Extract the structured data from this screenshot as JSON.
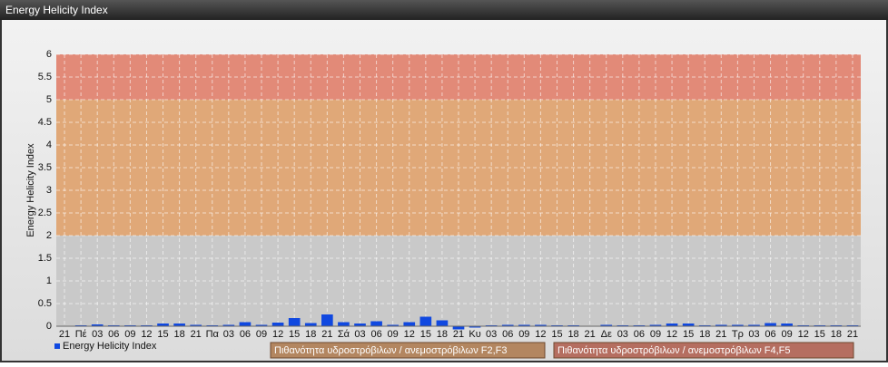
{
  "chart_data": {
    "type": "bar",
    "title": "Energy Helicity Index",
    "ylabel": "Energy Helicity Index",
    "categories": [
      "21",
      "Πέ",
      "03",
      "06",
      "09",
      "12",
      "15",
      "18",
      "21",
      "Πα",
      "03",
      "06",
      "09",
      "12",
      "15",
      "18",
      "21",
      "Σά",
      "03",
      "06",
      "09",
      "12",
      "15",
      "18",
      "21",
      "Κυ",
      "03",
      "06",
      "09",
      "12",
      "15",
      "18",
      "21",
      "Δε",
      "03",
      "06",
      "09",
      "12",
      "15",
      "18",
      "21",
      "Τρ",
      "03",
      "06",
      "09",
      "12",
      "15",
      "18",
      "21"
    ],
    "series": [
      {
        "name": "Energy Helicity Index",
        "color": "#1048e0",
        "values": [
          0.01,
          0.02,
          0.04,
          0.02,
          0.02,
          0.02,
          0.06,
          0.06,
          0.03,
          0.02,
          0.03,
          0.09,
          0.03,
          0.08,
          0.18,
          0.07,
          0.26,
          0.09,
          0.06,
          0.11,
          0.03,
          0.09,
          0.21,
          0.13,
          -0.07,
          -0.03,
          0.02,
          0.03,
          0.03,
          0.03,
          0.02,
          0.02,
          0.01,
          0.03,
          0.02,
          0.02,
          0.03,
          0.06,
          0.06,
          0.02,
          0.03,
          0.03,
          0.03,
          0.07,
          0.06,
          0.02,
          0.02,
          0.02,
          0.02
        ]
      }
    ],
    "bands": [
      {
        "from": 0,
        "to": 2,
        "color": "#c9c9c9"
      },
      {
        "from": 2,
        "to": 5,
        "color": "#e0a878",
        "name": "Πιθανότητα υδροστρόβιλων / ανεμοστρόβιλων F2,F3"
      },
      {
        "from": 5,
        "to": 6,
        "color": "#e28a78",
        "name": "Πιθανότητα υδροστρόβιλων / ανεμοστρόβιλων F4,F5"
      }
    ],
    "ylim": [
      0,
      6
    ],
    "yticks": [
      0,
      0.5,
      1,
      1.5,
      2,
      2.5,
      3,
      3.5,
      4,
      4.5,
      5,
      5.5,
      6
    ],
    "grid": true
  }
}
